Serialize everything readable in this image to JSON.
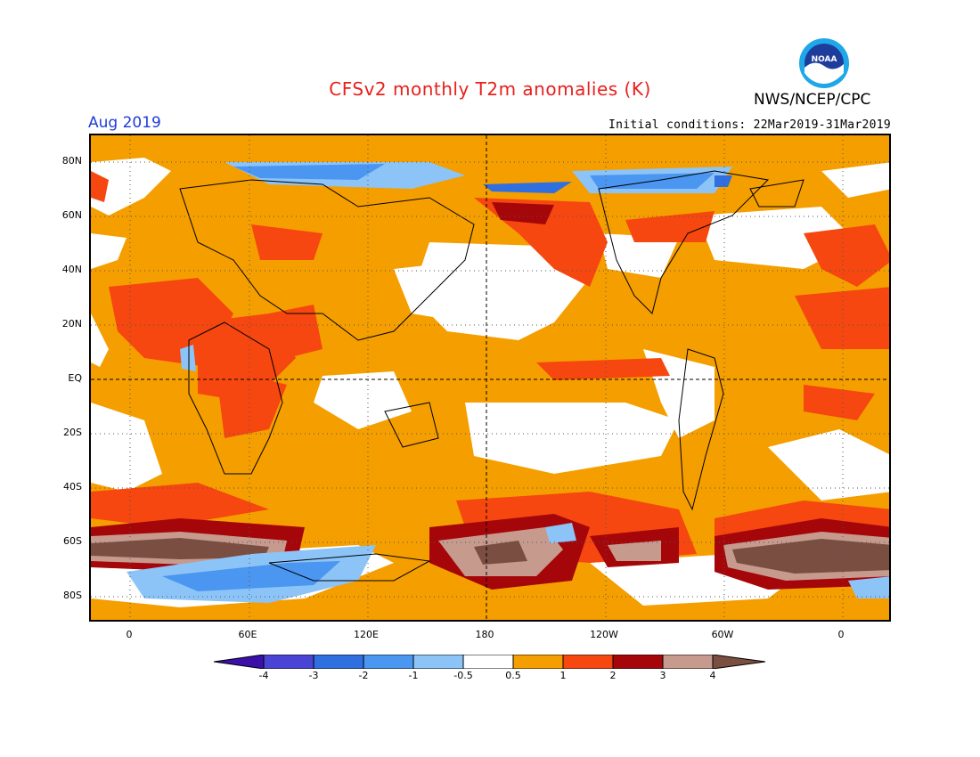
{
  "header": {
    "title": "CFSv2 monthly T2m anomalies (K)",
    "month": "Aug 2019",
    "initial_conditions": "Initial conditions: 22Mar2019-31Mar2019",
    "agency": "NWS/NCEP/CPC",
    "logo_text": "NOAA"
  },
  "axes": {
    "lat_labels": [
      "80N",
      "60N",
      "40N",
      "20N",
      "EQ",
      "20S",
      "40S",
      "60S",
      "80S"
    ],
    "lon_labels": [
      "0",
      "60E",
      "120E",
      "180",
      "120W",
      "60W",
      "0"
    ]
  },
  "colorbar": {
    "labels": [
      "-4",
      "-3",
      "-2",
      "-1",
      "-0.5",
      "0.5",
      "1",
      "2",
      "3",
      "4"
    ],
    "colors": [
      "#3a10a8",
      "#4a44d4",
      "#2f6fe0",
      "#4a96f0",
      "#8cc4f8",
      "#ffffff",
      "#f59e00",
      "#f5470f",
      "#a5060a",
      "#c79a8e",
      "#7a4e40"
    ]
  },
  "colors": {
    "title": "#e8201c",
    "month": "#1e3cd8",
    "base_anomaly": "#f59e00",
    "neutral": "#ffffff",
    "warm_1": "#f5470f",
    "warm_2": "#a5060a",
    "warm_3": "#c79a8e",
    "warm_4": "#7a4e40",
    "cool_1": "#8cc4f8",
    "cool_2": "#4a96f0",
    "cool_3": "#2f6fe0"
  }
}
